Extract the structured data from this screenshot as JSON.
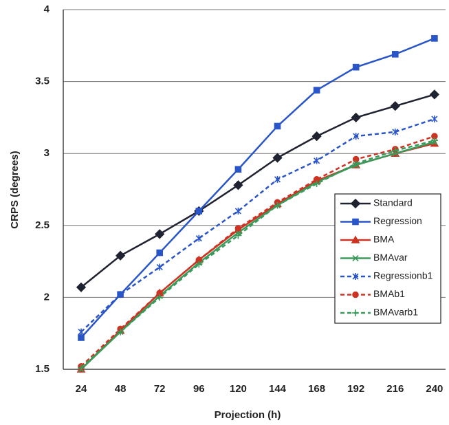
{
  "chart_data": {
    "type": "line",
    "x_label": "Projection (h)",
    "y_label": "CRPS (degrees)",
    "categories": [
      "24",
      "48",
      "72",
      "96",
      "120",
      "144",
      "168",
      "192",
      "216",
      "240"
    ],
    "ylim": [
      1.5,
      4
    ],
    "yticks": [
      1.5,
      2,
      2.5,
      3,
      3.5,
      4
    ],
    "grid": true,
    "legend": "right",
    "series": [
      {
        "name": "Standard",
        "color": "#1f2230",
        "dash": false,
        "marker": "diamond",
        "values": [
          2.07,
          2.29,
          2.44,
          2.6,
          2.78,
          2.97,
          3.12,
          3.25,
          3.33,
          3.41
        ]
      },
      {
        "name": "Regression",
        "color": "#2a55c8",
        "dash": false,
        "marker": "square",
        "values": [
          1.72,
          2.02,
          2.31,
          2.6,
          2.89,
          3.19,
          3.44,
          3.6,
          3.69,
          3.8
        ]
      },
      {
        "name": "BMA",
        "color": "#cc3322",
        "dash": false,
        "marker": "triangle",
        "values": [
          1.5,
          1.77,
          2.03,
          2.26,
          2.47,
          2.65,
          2.81,
          2.92,
          3.0,
          3.07
        ]
      },
      {
        "name": "BMAvar",
        "color": "#3a9a5a",
        "dash": false,
        "marker": "x",
        "values": [
          1.5,
          1.76,
          2.01,
          2.24,
          2.45,
          2.64,
          2.8,
          2.92,
          3.0,
          3.08
        ]
      },
      {
        "name": "Regressionb1",
        "color": "#2a55c8",
        "dash": true,
        "marker": "asterisk",
        "values": [
          1.76,
          2.02,
          2.21,
          2.41,
          2.6,
          2.82,
          2.95,
          3.12,
          3.15,
          3.24
        ]
      },
      {
        "name": "BMAb1",
        "color": "#cc3322",
        "dash": true,
        "marker": "circle",
        "values": [
          1.52,
          1.78,
          2.03,
          2.26,
          2.48,
          2.66,
          2.82,
          2.96,
          3.03,
          3.12
        ]
      },
      {
        "name": "BMAvarb1",
        "color": "#3a9a5a",
        "dash": true,
        "marker": "plus",
        "values": [
          1.51,
          1.76,
          2.0,
          2.23,
          2.43,
          2.64,
          2.79,
          2.93,
          3.02,
          3.09
        ]
      }
    ]
  }
}
